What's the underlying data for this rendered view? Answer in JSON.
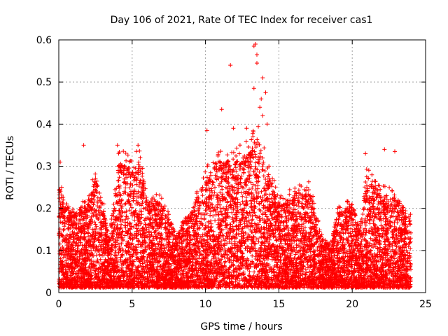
{
  "chart_data": {
    "type": "scatter",
    "title": "Day 106 of 2021, Rate Of TEC Index for receiver cas1",
    "xlabel": "GPS time / hours",
    "ylabel": "ROTI / TECUs",
    "xlim": [
      0,
      25
    ],
    "ylim": [
      0,
      0.6
    ],
    "x_ticks": [
      0,
      5,
      10,
      15,
      20,
      25
    ],
    "y_ticks": [
      0,
      0.1,
      0.2,
      0.3,
      0.4,
      0.5,
      0.6
    ],
    "x_tick_labels": [
      "0",
      "5",
      "10",
      "15",
      "20",
      "25"
    ],
    "y_tick_labels": [
      "0",
      "0.1",
      "0.2",
      "0.3",
      "0.4",
      "0.5",
      "0.6"
    ],
    "grid": true,
    "marker": "+",
    "color": "#ff0000",
    "x_range_of_data": [
      0,
      24
    ],
    "series": [
      {
        "name": "cas1",
        "notable_points": [
          {
            "x": 13.4,
            "y": 0.59
          },
          {
            "x": 13.3,
            "y": 0.585
          },
          {
            "x": 13.5,
            "y": 0.565
          },
          {
            "x": 11.7,
            "y": 0.54
          },
          {
            "x": 13.5,
            "y": 0.545
          },
          {
            "x": 13.9,
            "y": 0.51
          },
          {
            "x": 13.3,
            "y": 0.485
          },
          {
            "x": 14.1,
            "y": 0.475
          },
          {
            "x": 13.8,
            "y": 0.46
          },
          {
            "x": 13.7,
            "y": 0.44
          },
          {
            "x": 11.1,
            "y": 0.435
          },
          {
            "x": 13.9,
            "y": 0.42
          },
          {
            "x": 14.2,
            "y": 0.4
          },
          {
            "x": 12.8,
            "y": 0.39
          },
          {
            "x": 10.1,
            "y": 0.385
          },
          {
            "x": 11.9,
            "y": 0.39
          },
          {
            "x": 1.7,
            "y": 0.35
          },
          {
            "x": 4.0,
            "y": 0.35
          },
          {
            "x": 5.4,
            "y": 0.35
          },
          {
            "x": 22.2,
            "y": 0.34
          },
          {
            "x": 22.9,
            "y": 0.335
          },
          {
            "x": 20.9,
            "y": 0.33
          },
          {
            "x": 0.1,
            "y": 0.31
          }
        ]
      }
    ]
  }
}
